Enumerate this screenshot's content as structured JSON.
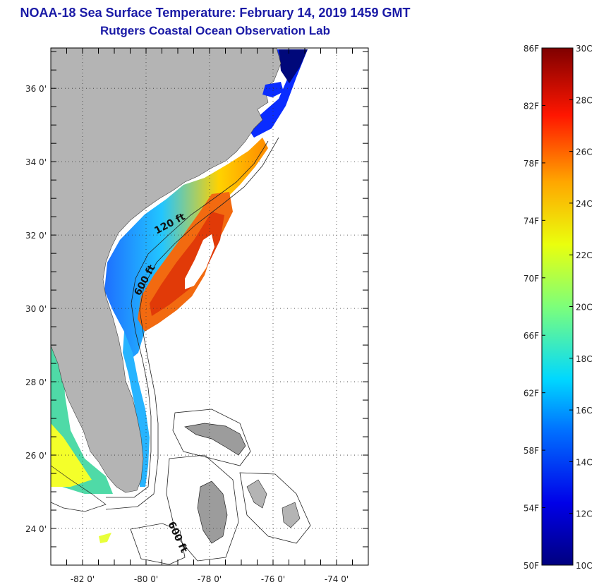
{
  "title": {
    "line1": "NOAA-18 Sea Surface Temperature:  February 14, 2019 1459 GMT",
    "line2": "Rutgers Coastal Ocean Observation Lab"
  },
  "map": {
    "lat_ticks": [
      {
        "value": 36,
        "label": "36 0'"
      },
      {
        "value": 34,
        "label": "34 0'"
      },
      {
        "value": 32,
        "label": "32 0'"
      },
      {
        "value": 30,
        "label": "30 0'"
      },
      {
        "value": 28,
        "label": "28 0'"
      },
      {
        "value": 26,
        "label": "26 0'"
      },
      {
        "value": 24,
        "label": "24 0'"
      }
    ],
    "lon_ticks": [
      {
        "value": -82,
        "label": "-82 0'"
      },
      {
        "value": -80,
        "label": "-80 0'"
      },
      {
        "value": -78,
        "label": "-78 0'"
      },
      {
        "value": -76,
        "label": "-76 0'"
      },
      {
        "value": -74,
        "label": "-74 0'"
      }
    ],
    "lat_range": [
      23,
      37.1
    ],
    "lon_range": [
      -83,
      -73
    ],
    "contours": [
      {
        "label": "120 ft"
      },
      {
        "label": "600 ft"
      },
      {
        "label": "600 ft"
      }
    ],
    "colors": {
      "land": "#b4b4b4",
      "grid": "#222222"
    }
  },
  "colorbar": {
    "f_labels": [
      "86F",
      "82F",
      "78F",
      "74F",
      "70F",
      "66F",
      "62F",
      "58F",
      "54F",
      "50F"
    ],
    "c_labels": [
      "30C",
      "28C",
      "26C",
      "24C",
      "22C",
      "20C",
      "18C",
      "16C",
      "14C",
      "12C",
      "10C"
    ],
    "range_c": [
      10,
      30
    ],
    "range_f": [
      50,
      86
    ]
  }
}
